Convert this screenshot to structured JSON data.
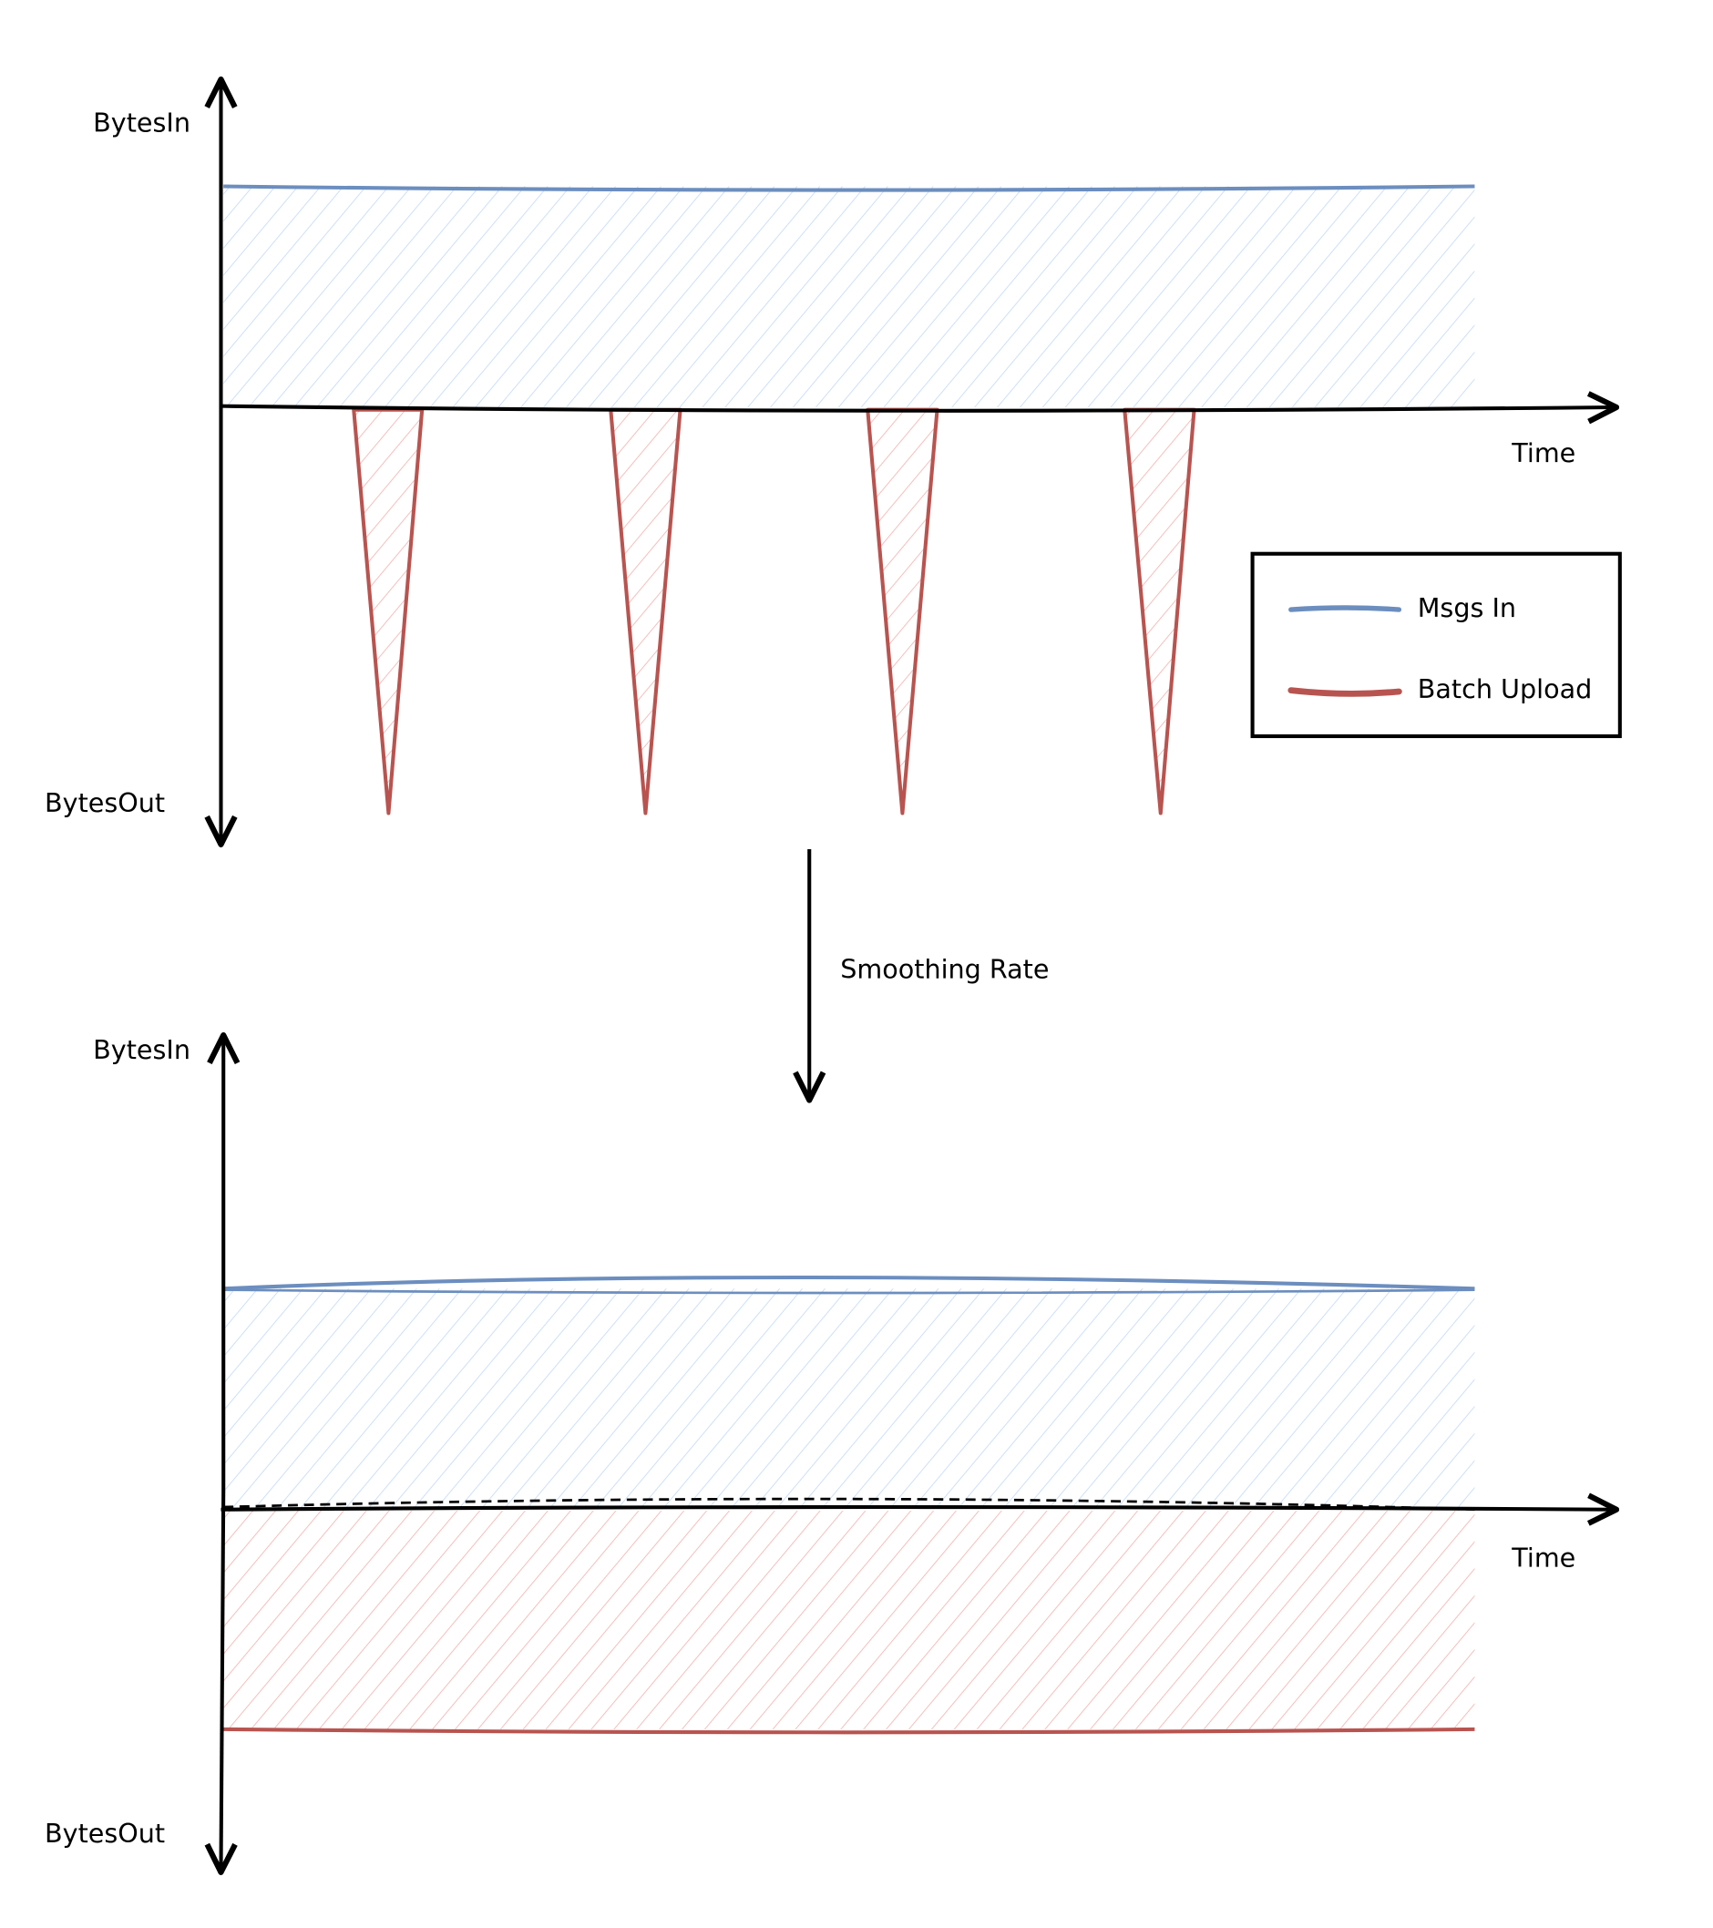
{
  "colors": {
    "msgs_in": "#6c8ebf",
    "msgs_in_fill": "#dae8fc",
    "batch_upload": "#b85450",
    "batch_upload_fill": "#f8cecc",
    "axis": "#000000"
  },
  "top_chart": {
    "y_axis_top_label": "BytesIn",
    "y_axis_bottom_label": "BytesOut",
    "x_axis_label": "Time",
    "spike_count": 4
  },
  "legend": {
    "items": [
      {
        "label": "Msgs In",
        "series": "msgs_in"
      },
      {
        "label": "Batch Upload",
        "series": "batch_upload"
      }
    ]
  },
  "transition": {
    "label": "Smoothing Rate"
  },
  "bottom_chart": {
    "y_axis_top_label": "BytesIn",
    "y_axis_bottom_label": "BytesOut",
    "x_axis_label": "Time"
  }
}
